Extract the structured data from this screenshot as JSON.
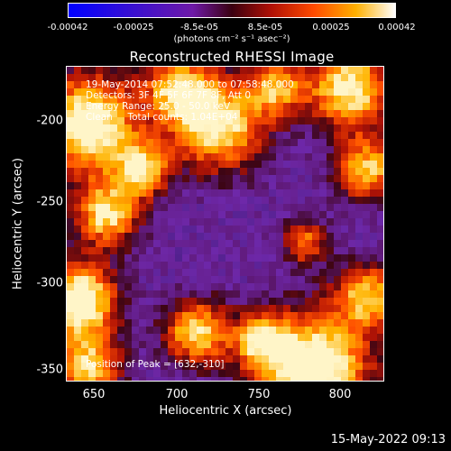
{
  "colorbar": {
    "ticks": [
      "-0.00042",
      "-0.00025",
      "-8.5e-05",
      "8.5e-05",
      "0.00025",
      "0.00042"
    ],
    "units_label": "(photons cm⁻² s⁻¹ asec⁻²)",
    "range": [
      -0.00042,
      0.00042
    ]
  },
  "title": "Reconstructed RHESSI Image",
  "info": {
    "time_range": "19-May-2014 07:52:48.000 to 07:58:48.000",
    "detectors": "Detectors: 3F 4F 5F 6F 7F 8F, Att 0",
    "energy_range": "Energy Range: 25.0 - 50.0 keV",
    "algorithm_counts": "Clean     Total counts: 1.04E+04",
    "peak_position": "Position of Peak = [632,-310]"
  },
  "axes": {
    "xlabel": "Heliocentric X (arcsec)",
    "ylabel": "Heliocentric Y (arcsec)",
    "xticks": [
      "650",
      "700",
      "750",
      "800"
    ],
    "yticks": [
      "-200",
      "-250",
      "-300",
      "-350"
    ],
    "xlim": [
      632,
      828
    ],
    "ylim": [
      -366,
      -172
    ]
  },
  "footer": {
    "timestamp": "15-May-2022 09:13"
  }
}
